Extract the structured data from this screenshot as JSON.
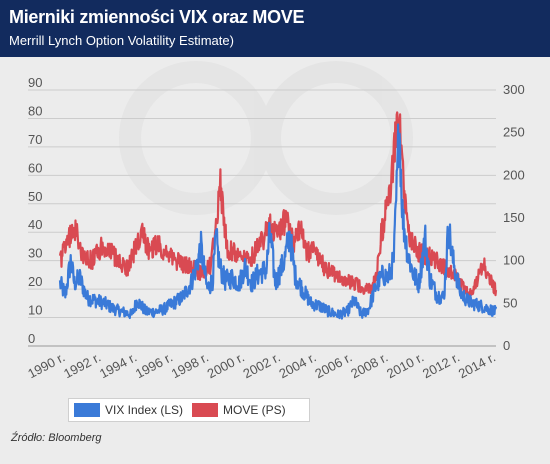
{
  "header": {
    "title": "Mierniki zmienności VIX oraz MOVE",
    "subtitle": "Merrill Lynch Option Volatility Estimate)"
  },
  "source": "Źródło: Bloomberg",
  "chart_data": {
    "type": "line",
    "x_tick_labels": [
      "1990 r.",
      "1992 r.",
      "1994 r.",
      "1996 r.",
      "1998 r.",
      "2000 r.",
      "2002 r.",
      "2004 r.",
      "2006 r.",
      "2008 r.",
      "2010 r.",
      "2012 r.",
      "2014 r."
    ],
    "x_tick_years": [
      1990,
      1992,
      1994,
      1996,
      1998,
      2000,
      2002,
      2004,
      2006,
      2008,
      2010,
      2012,
      2014
    ],
    "xlim": [
      1990.0,
      2014.3
    ],
    "y_left": {
      "lim": [
        0,
        90
      ],
      "ticks": [
        0,
        10,
        20,
        30,
        40,
        50,
        60,
        70,
        80,
        90
      ]
    },
    "y_right": {
      "lim": [
        0,
        300
      ],
      "ticks": [
        0,
        50,
        100,
        150,
        200,
        250,
        300
      ]
    },
    "grid": true,
    "legend_position": "bottom-left",
    "colors": {
      "vix": "#3a7ad8",
      "move": "#d94a52",
      "grid": "#cccccc",
      "axis_text": "#555555"
    },
    "series": [
      {
        "name": "VIX Index (LS)",
        "axis": "left",
        "color": "#3a7ad8",
        "x": [
          1990.0,
          1990.3,
          1990.6,
          1990.8,
          1991.1,
          1991.5,
          1992.0,
          1992.5,
          1993.0,
          1993.5,
          1994.0,
          1994.3,
          1994.8,
          1995.3,
          1995.8,
          1996.3,
          1996.8,
          1997.3,
          1997.6,
          1997.85,
          1998.2,
          1998.5,
          1998.7,
          1998.9,
          1999.2,
          1999.6,
          2000.0,
          2000.3,
          2000.7,
          2001.0,
          2001.5,
          2001.7,
          2002.0,
          2002.5,
          2002.8,
          2003.1,
          2003.5,
          2004.0,
          2004.5,
          2005.0,
          2005.5,
          2006.0,
          2006.4,
          2006.8,
          2007.2,
          2007.6,
          2008.0,
          2008.3,
          2008.6,
          2008.8,
          2008.9,
          2009.1,
          2009.4,
          2009.7,
          2010.0,
          2010.35,
          2010.6,
          2011.0,
          2011.4,
          2011.65,
          2011.9,
          2012.3,
          2012.7,
          2013.0,
          2013.5,
          2013.9,
          2014.3
        ],
        "values": [
          22,
          18,
          30,
          22,
          24,
          17,
          16,
          15,
          13,
          12,
          11,
          16,
          12,
          12,
          13,
          15,
          17,
          22,
          28,
          35,
          20,
          23,
          38,
          28,
          23,
          24,
          22,
          28,
          22,
          25,
          27,
          40,
          22,
          30,
          39,
          25,
          20,
          15,
          14,
          12,
          11,
          12,
          16,
          11,
          13,
          21,
          25,
          24,
          30,
          60,
          80,
          45,
          32,
          25,
          22,
          38,
          24,
          18,
          17,
          42,
          30,
          19,
          16,
          15,
          14,
          13,
          12
        ]
      },
      {
        "name": "MOVE (PS)",
        "axis": "right",
        "color": "#d94a52",
        "x": [
          1990.0,
          1990.4,
          1990.8,
          1991.3,
          1991.8,
          1992.3,
          1992.8,
          1993.3,
          1993.8,
          1994.2,
          1994.6,
          1995.0,
          1995.5,
          1996.0,
          1996.5,
          1997.0,
          1997.5,
          1997.9,
          1998.4,
          1998.7,
          1998.9,
          1999.3,
          1999.7,
          2000.2,
          2000.7,
          2001.2,
          2001.7,
          2002.2,
          2002.6,
          2003.0,
          2003.4,
          2003.7,
          2004.2,
          2004.8,
          2005.3,
          2005.8,
          2006.3,
          2006.8,
          2007.2,
          2007.6,
          2007.9,
          2008.2,
          2008.5,
          2008.75,
          2008.9,
          2009.2,
          2009.5,
          2010.0,
          2010.5,
          2011.0,
          2011.5,
          2011.9,
          2012.4,
          2012.8,
          2013.2,
          2013.6,
          2013.9,
          2014.3
        ],
        "values": [
          100,
          120,
          140,
          105,
          100,
          115,
          110,
          100,
          90,
          115,
          130,
          110,
          120,
          105,
          100,
          95,
          90,
          85,
          95,
          140,
          195,
          115,
          110,
          100,
          105,
          120,
          140,
          130,
          150,
          120,
          140,
          110,
          110,
          90,
          85,
          75,
          75,
          70,
          65,
          80,
          130,
          160,
          200,
          250,
          265,
          170,
          125,
          110,
          105,
          100,
          90,
          85,
          70,
          60,
          75,
          95,
          80,
          65
        ]
      }
    ]
  }
}
